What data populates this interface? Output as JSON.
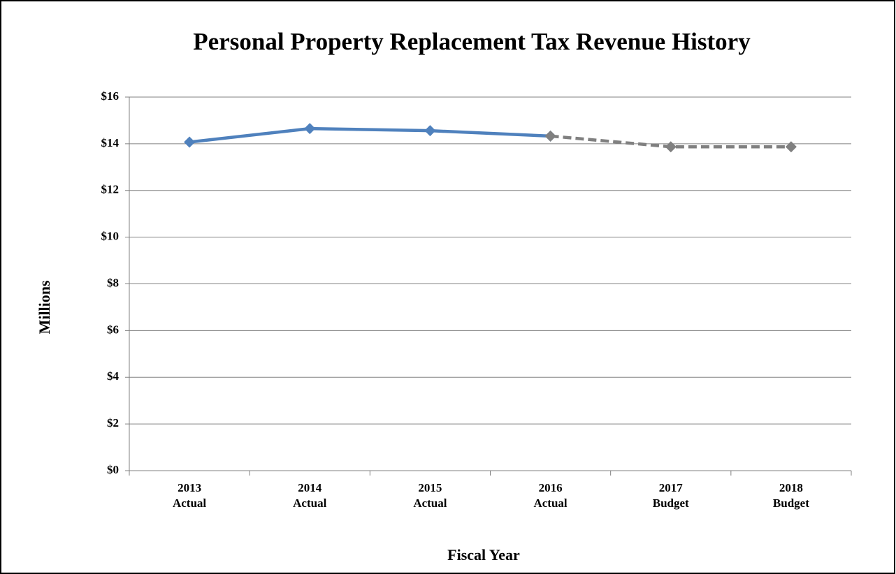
{
  "chart_data": {
    "type": "line",
    "title": "Personal Property Replacement Tax Revenue History",
    "x_label": "Fiscal Year",
    "y_label": "Millions",
    "categories": [
      "2013\nActual",
      "2014\nActual",
      "2015\nActual",
      "2016\nActual",
      "2017\nBudget",
      "2018\nBudget"
    ],
    "series": [
      {
        "color": "#4f81bd",
        "dashed": false,
        "values": [
          14.07,
          14.65,
          14.56,
          14.33,
          null,
          null
        ]
      },
      {
        "color": "#808080",
        "dashed": true,
        "values": [
          null,
          null,
          null,
          14.33,
          13.87,
          13.87
        ]
      }
    ],
    "ylim": [
      0,
      16
    ],
    "yticks": [
      {
        "value": 0,
        "label": "$0"
      },
      {
        "value": 2,
        "label": "$2"
      },
      {
        "value": 4,
        "label": "$4"
      },
      {
        "value": 6,
        "label": "$6"
      },
      {
        "value": 8,
        "label": "$8"
      },
      {
        "value": 10,
        "label": "$10"
      },
      {
        "value": 12,
        "label": "$12"
      },
      {
        "value": 14,
        "label": "$14"
      },
      {
        "value": 16,
        "label": "$16"
      }
    ],
    "grid": true
  }
}
